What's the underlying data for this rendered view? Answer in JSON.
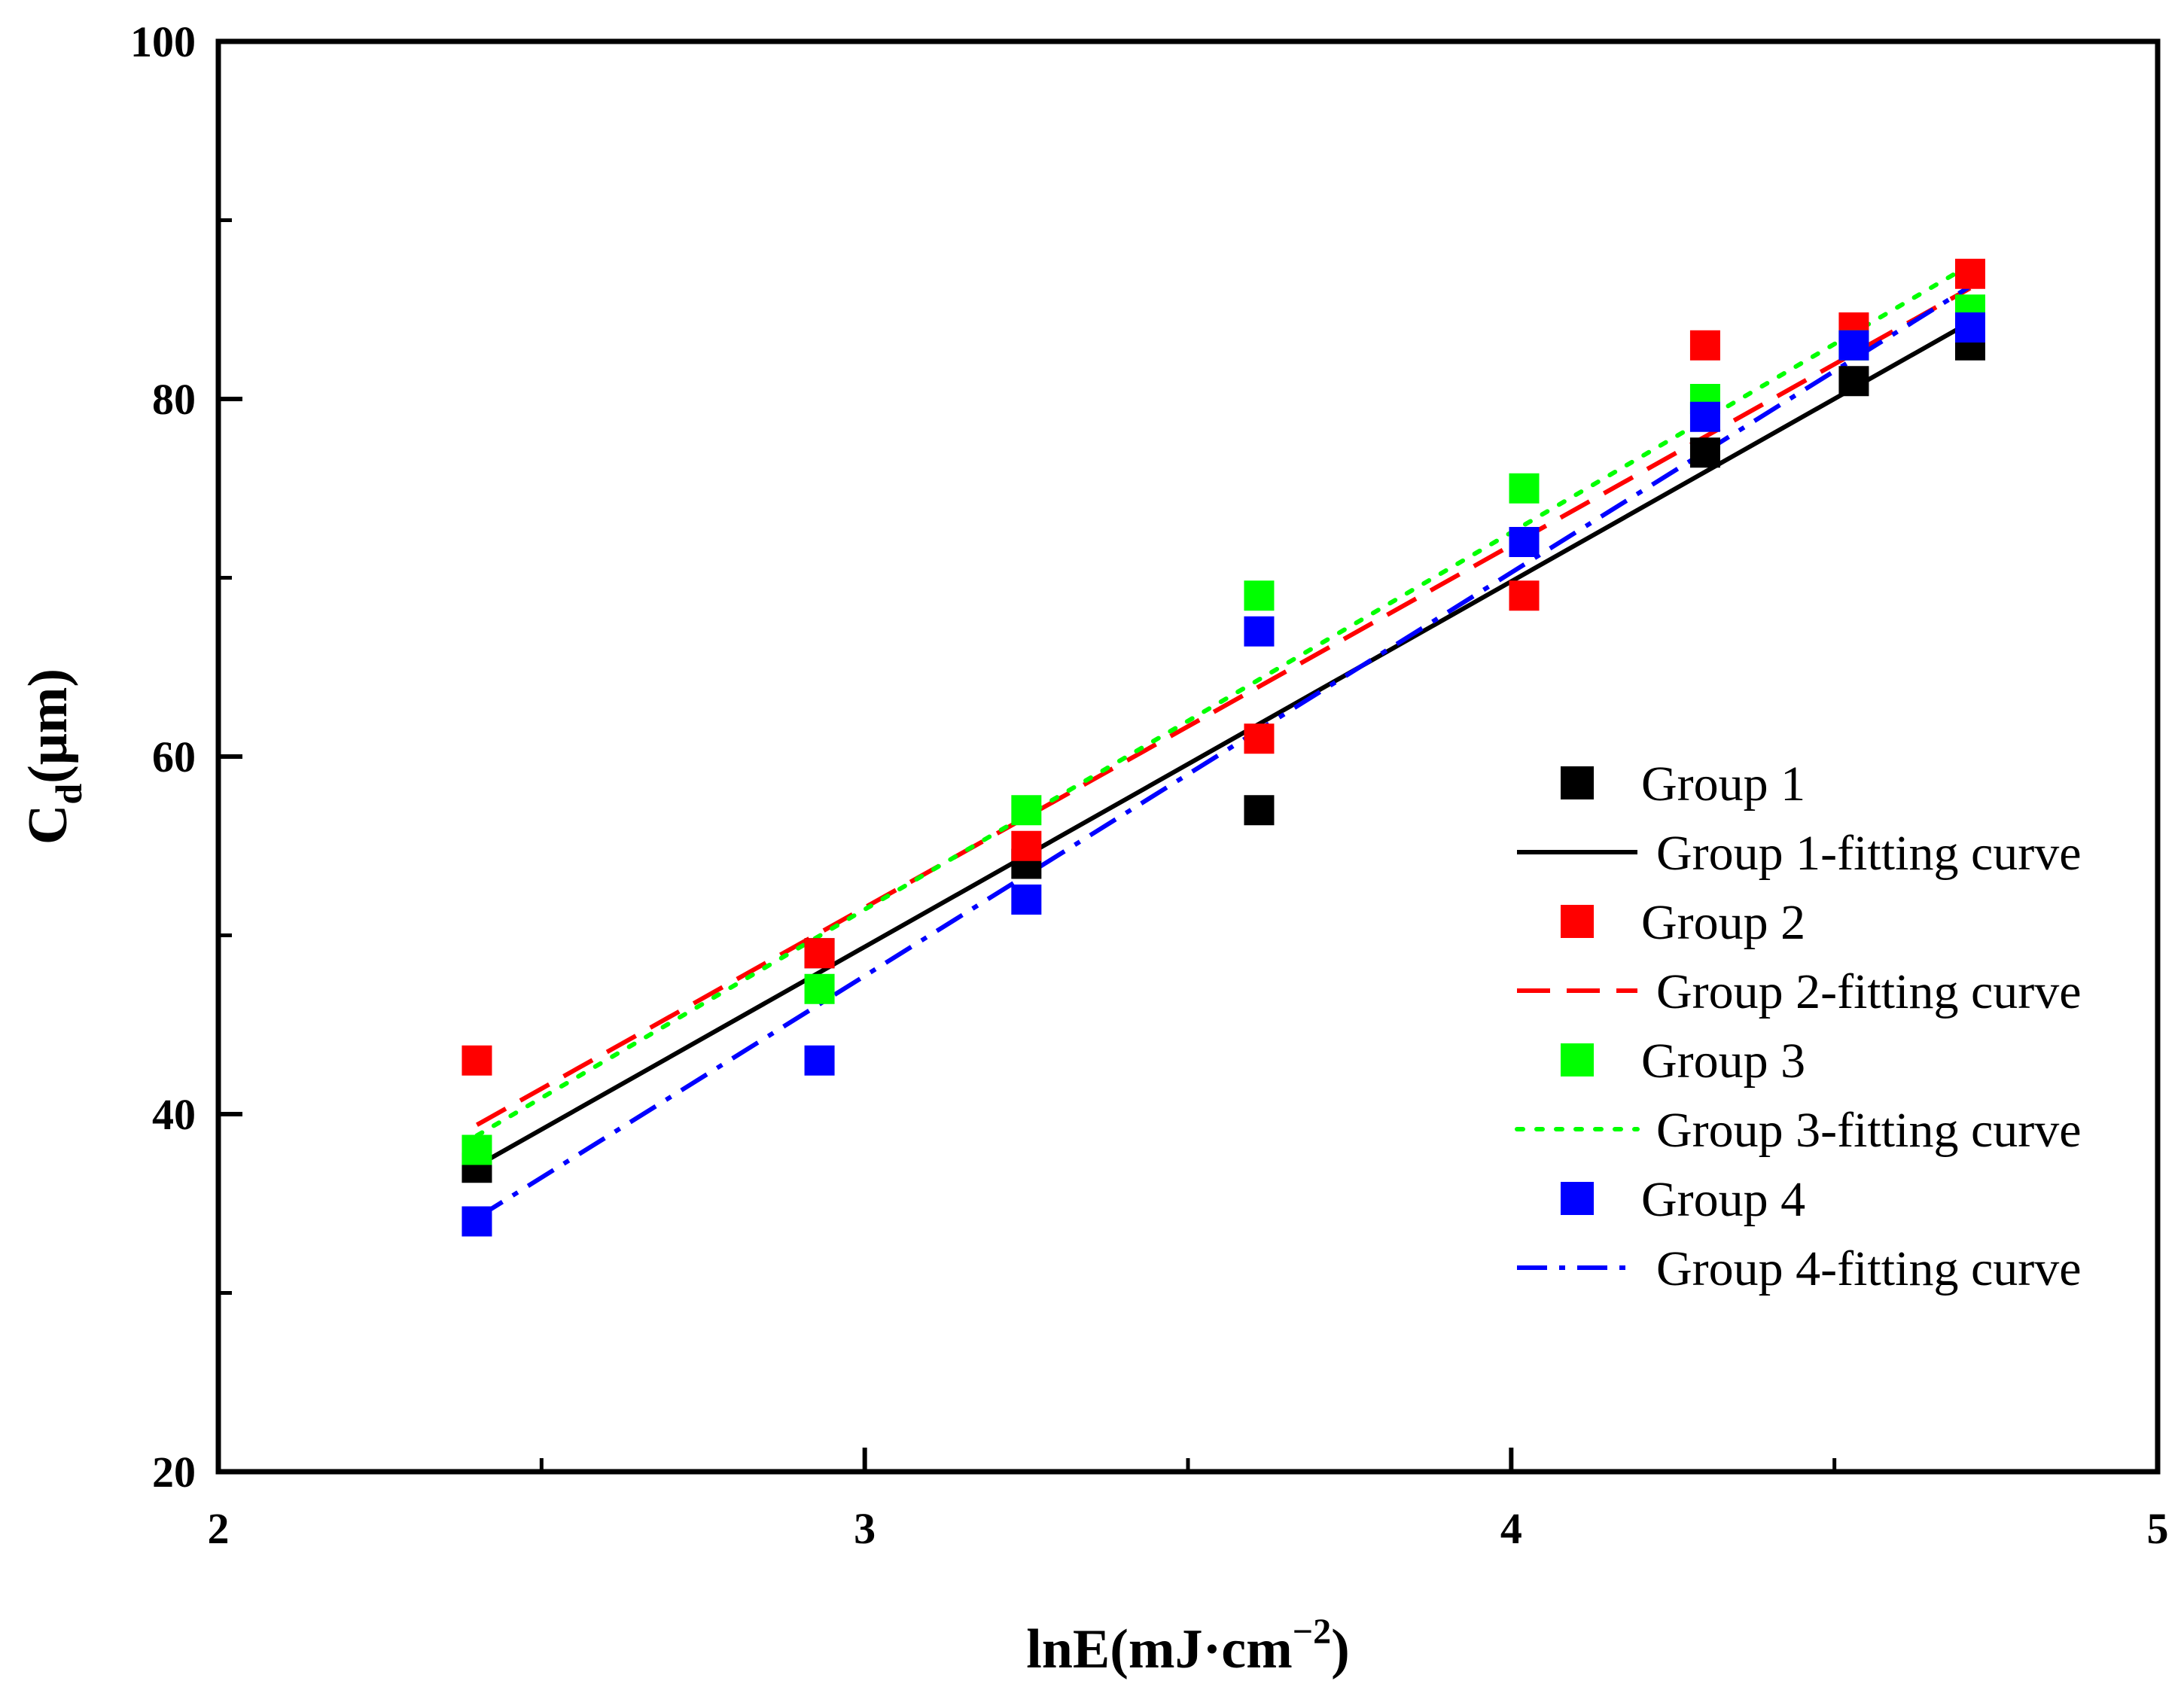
{
  "chart_data": {
    "type": "scatter",
    "title": "",
    "xlabel": "lnE(mJ·cm",
    "xlabel_sup": "−2",
    "xlabel_close": ")",
    "ylabel": "C",
    "ylabel_sub": "d",
    "ylabel_unit": "(μm)",
    "xlim": [
      2,
      5
    ],
    "ylim": [
      20,
      100
    ],
    "x_ticks": [
      2,
      3,
      4,
      5
    ],
    "x_minor_ticks": [
      2.5,
      3.5,
      4.5
    ],
    "y_ticks": [
      20,
      40,
      60,
      80,
      100
    ],
    "y_minor_ticks": [
      30,
      50,
      70,
      90
    ],
    "grid": false,
    "legend_position": "center-right",
    "series": [
      {
        "name": "Group 1",
        "fit_name": "Group 1-fitting curve",
        "color": "#000000",
        "line_style": "solid",
        "x": [
          2.4,
          2.93,
          3.25,
          3.61,
          4.02,
          4.3,
          4.53,
          4.71
        ],
        "y": [
          37,
          49,
          54,
          57,
          72,
          77,
          81,
          83
        ],
        "fit": [
          [
            2.4,
            37.1
          ],
          [
            4.71,
            84.3
          ]
        ]
      },
      {
        "name": "Group 2",
        "fit_name": "Group 2-fitting curve",
        "color": "#ff0000",
        "line_style": "dashed",
        "x": [
          2.4,
          2.93,
          3.25,
          3.61,
          4.02,
          4.3,
          4.53,
          4.71
        ],
        "y": [
          43,
          49,
          55,
          61,
          69,
          83,
          84,
          87
        ],
        "fit": [
          [
            2.4,
            39.4
          ],
          [
            4.71,
            86.2
          ]
        ]
      },
      {
        "name": "Group 3",
        "fit_name": "Group 3-fitting curve",
        "color": "#00ff00",
        "line_style": "dotted",
        "x": [
          2.4,
          2.93,
          3.25,
          3.61,
          4.02,
          4.3,
          4.53,
          4.71
        ],
        "y": [
          38,
          47,
          57,
          69,
          75,
          80,
          83,
          85
        ],
        "fit": [
          [
            2.4,
            38.8
          ],
          [
            4.71,
            87.5
          ]
        ]
      },
      {
        "name": "Group 4",
        "fit_name": "Group 4-fitting curve",
        "color": "#0000ff",
        "line_style": "dashdot",
        "x": [
          2.4,
          2.93,
          3.25,
          3.61,
          4.02,
          4.3,
          4.53,
          4.71
        ],
        "y": [
          34,
          43,
          52,
          67,
          72,
          79,
          83,
          84
        ],
        "fit": [
          [
            2.4,
            34.2
          ],
          [
            4.71,
            86.3
          ]
        ]
      }
    ]
  }
}
